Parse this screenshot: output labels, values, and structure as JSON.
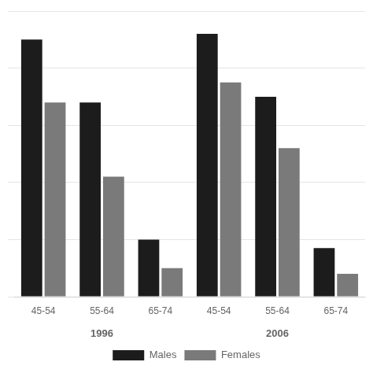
{
  "chart_data": {
    "type": "bar",
    "categories": [
      "45-54",
      "55-64",
      "65-74",
      "45-54",
      "55-64",
      "65-74"
    ],
    "annotations": [
      "1996",
      "2006"
    ],
    "series": [
      {
        "name": "Males",
        "color": "#1c1c1c",
        "values": [
          90,
          68,
          20,
          92,
          70,
          17
        ]
      },
      {
        "name": "Females",
        "color": "#7a7a7a",
        "values": [
          68,
          42,
          10,
          75,
          52,
          8
        ]
      }
    ],
    "ylim": [
      0,
      100
    ],
    "yticks": [
      0,
      20,
      40,
      60,
      80,
      100
    ],
    "grid": true,
    "legend": "bottom",
    "tick_labels": "x"
  }
}
